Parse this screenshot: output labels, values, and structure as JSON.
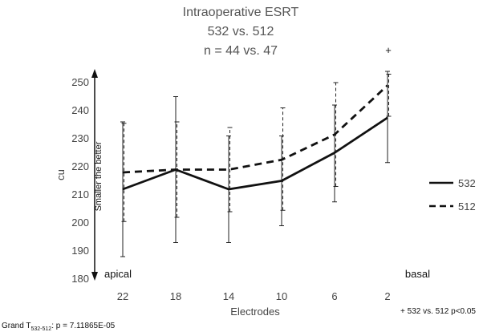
{
  "chart_data": {
    "type": "line",
    "title_lines": [
      "Intraoperative ESRT",
      "532 vs. 512",
      "n = 44 vs. 47"
    ],
    "xlabel": "Electrodes",
    "ylabel": "cu",
    "categories": [
      "22",
      "18",
      "14",
      "10",
      "6",
      "2"
    ],
    "ylim": [
      180,
      250
    ],
    "yticks": [
      180,
      190,
      200,
      210,
      220,
      230,
      240,
      250
    ],
    "grid": false,
    "legend_position": "right",
    "series": [
      {
        "name": "532",
        "style": "solid",
        "values": [
          212,
          219,
          212,
          215,
          225,
          237.5
        ],
        "err_low": [
          188,
          193,
          193,
          199,
          207.5,
          221.5
        ],
        "err_high": [
          236,
          245,
          231,
          231,
          242,
          254
        ]
      },
      {
        "name": "512",
        "style": "dashed",
        "values": [
          218,
          219,
          219,
          222.5,
          231.5,
          249
        ],
        "err_low": [
          200.5,
          202,
          204,
          204.5,
          213,
          238
        ],
        "err_high": [
          235.5,
          236,
          234,
          241,
          250,
          253
        ]
      }
    ],
    "significance_marker": {
      "category": "2",
      "symbol": "+"
    },
    "annotations": {
      "arrow_label": "Smaller the better",
      "apical": "apical",
      "basal": "basal",
      "significance_note": "+ 532 vs. 512 p<0.05",
      "grand_prefix": "Grand T",
      "grand_subscript": "532-512",
      "grand_suffix": ": p = 7.11865E-05"
    }
  }
}
